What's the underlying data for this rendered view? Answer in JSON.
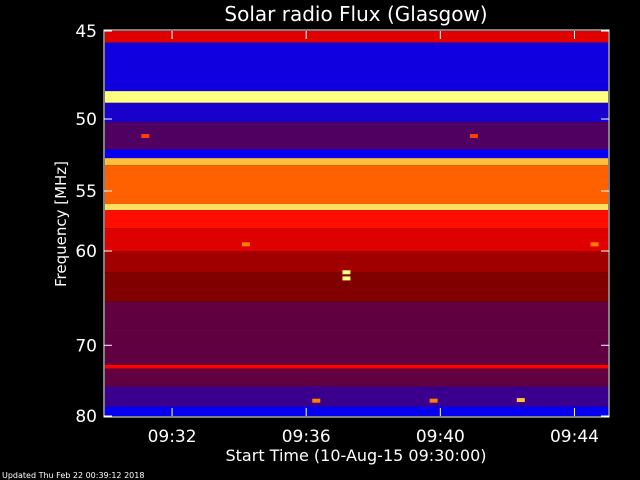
{
  "chart_data": {
    "type": "heatmap",
    "title": "Solar radio Flux (Glasgow)",
    "xlabel": "Start Time (10-Aug-15 09:30:00)",
    "ylabel": "Frequency [MHz]",
    "x_ticks": [
      "09:32",
      "09:36",
      "09:40",
      "09:44"
    ],
    "x_tick_minutes": [
      2,
      6,
      10,
      14
    ],
    "xlim_minutes": [
      0,
      15
    ],
    "y_ticks": [
      45,
      50,
      55,
      60,
      70,
      80
    ],
    "ylim": [
      45,
      80
    ],
    "y_scale": "reciprocal",
    "grid": false,
    "colormap": [
      "#0000ff",
      "#400080",
      "#800000",
      "#ff0000",
      "#ff8000",
      "#ffff80"
    ],
    "bands": [
      {
        "from": 45.0,
        "to": 45.6,
        "level": 0.55
      },
      {
        "from": 45.6,
        "to": 48.3,
        "level": 0.05
      },
      {
        "from": 48.3,
        "to": 49.0,
        "level": 1.0
      },
      {
        "from": 49.0,
        "to": 50.2,
        "level": 0.08
      },
      {
        "from": 50.2,
        "to": 52.0,
        "level": 0.25
      },
      {
        "from": 52.0,
        "to": 52.6,
        "level": 0.02
      },
      {
        "from": 52.6,
        "to": 53.1,
        "level": 0.9
      },
      {
        "from": 53.1,
        "to": 56.0,
        "level": 0.75
      },
      {
        "from": 56.0,
        "to": 56.5,
        "level": 0.95
      },
      {
        "from": 56.5,
        "to": 58.0,
        "level": 0.62
      },
      {
        "from": 58.0,
        "to": 60.0,
        "level": 0.55
      },
      {
        "from": 60.0,
        "to": 62.0,
        "level": 0.45
      },
      {
        "from": 62.0,
        "to": 65.0,
        "level": 0.4
      },
      {
        "from": 65.0,
        "to": 68.0,
        "level": 0.3
      },
      {
        "from": 68.0,
        "to": 72.5,
        "level": 0.3
      },
      {
        "from": 72.5,
        "to": 73.0,
        "level": 0.6
      },
      {
        "from": 73.0,
        "to": 75.5,
        "level": 0.3
      },
      {
        "from": 75.5,
        "to": 78.5,
        "level": 0.18
      },
      {
        "from": 78.5,
        "to": 80.0,
        "level": 0.02
      }
    ],
    "bursts": [
      {
        "time_min": 7.2,
        "freq": 62.0,
        "level": 1.0
      },
      {
        "time_min": 7.2,
        "freq": 62.6,
        "level": 1.0
      },
      {
        "time_min": 4.2,
        "freq": 59.4,
        "level": 0.8
      },
      {
        "time_min": 14.6,
        "freq": 59.4,
        "level": 0.8
      },
      {
        "time_min": 1.2,
        "freq": 51.1,
        "level": 0.7
      },
      {
        "time_min": 11.0,
        "freq": 51.1,
        "level": 0.7
      },
      {
        "time_min": 6.3,
        "freq": 77.6,
        "level": 0.8
      },
      {
        "time_min": 9.8,
        "freq": 77.6,
        "level": 0.8
      },
      {
        "time_min": 12.4,
        "freq": 77.5,
        "level": 0.9
      }
    ]
  },
  "footer": {
    "updated": "Updated Thu Feb 22 00:39:12 2018"
  }
}
